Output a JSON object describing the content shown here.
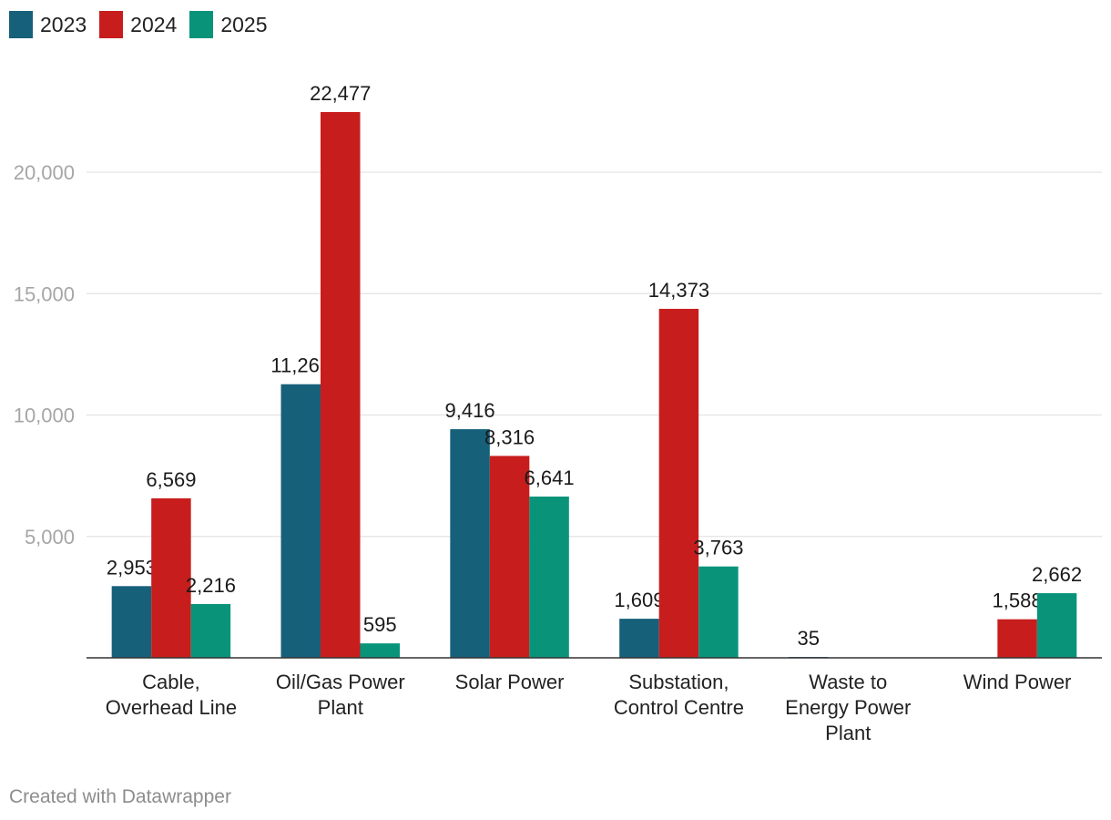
{
  "chart_data": {
    "type": "bar",
    "title": "",
    "xlabel": "",
    "ylabel": "",
    "categories": [
      [
        "Cable,",
        "Overhead Line"
      ],
      [
        "Oil/Gas Power",
        "Plant"
      ],
      [
        "Solar Power"
      ],
      [
        "Substation,",
        "Control Centre"
      ],
      [
        "Waste to",
        "Energy Power",
        "Plant"
      ],
      [
        "Wind Power"
      ]
    ],
    "series": [
      {
        "name": "2023",
        "color": "#16607a",
        "values": [
          2953,
          11268,
          9416,
          1609,
          35,
          null
        ],
        "labels": [
          "2,953",
          "11,268",
          "9,416",
          "1,609",
          "35",
          ""
        ]
      },
      {
        "name": "2024",
        "color": "#c71e1d",
        "values": [
          6569,
          22477,
          8316,
          14373,
          null,
          1588
        ],
        "labels": [
          "6,569",
          "22,477",
          "8,316",
          "14,373",
          "",
          "1,588"
        ]
      },
      {
        "name": "2025",
        "color": "#09947a",
        "values": [
          2216,
          595,
          6641,
          3763,
          null,
          2662
        ],
        "labels": [
          "2,216",
          "595",
          "6,641",
          "3,763",
          "",
          "2,662"
        ]
      }
    ],
    "yticks": [
      5000,
      10000,
      15000,
      20000
    ],
    "ytick_labels": [
      "5,000",
      "10,000",
      "15,000",
      "20,000"
    ],
    "ylim": [
      0,
      22477
    ],
    "grid": true,
    "legend": "top-left"
  },
  "footer": {
    "credit": "Created with Datawrapper"
  }
}
